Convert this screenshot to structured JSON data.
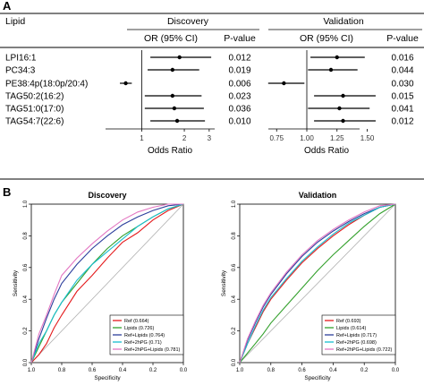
{
  "panel_labels": {
    "a": "A",
    "b": "B"
  },
  "forest": {
    "header": {
      "lipid": "Lipid",
      "discovery": "Discovery",
      "validation": "Validation",
      "or_ci": "OR (95% CI)",
      "pvalue": "P-value"
    },
    "x_label": "Odds Ratio",
    "lipids": [
      "LPI16:1",
      "PC34:3",
      "PE38:4p(18:0p/20:4)",
      "TAG50:2(16:2)",
      "TAG51:0(17:0)",
      "TAG54:7(22:6)"
    ],
    "discovery_pvalues": [
      "0.012",
      "0.019",
      "0.006",
      "0.023",
      "0.036",
      "0.010"
    ],
    "validation_pvalues": [
      "0.016",
      "0.044",
      "0.030",
      "0.015",
      "0.041",
      "0.012"
    ]
  },
  "roc_legend_labels": {
    "discovery": [
      "Ref (0.664)",
      "Lipids (0.726)",
      "Ref+Lipids (0.764)",
      "Ref+2hPG (0.71)",
      "Ref+2hPG+Lipids (0.781)"
    ],
    "validation": [
      "Ref (0.693)",
      "Lipids (0.614)",
      "Ref+Lipids (0.717)",
      "Ref+2hPG (0.698)",
      "Ref+2hPG+Lipids (0.722)"
    ]
  },
  "chart_data": [
    {
      "type": "scatter",
      "title": "Discovery",
      "xlabel": "Odds Ratio",
      "xscale": "log",
      "xlim": [
        0.6,
        3.2
      ],
      "xticks": [
        "1",
        "2",
        "3"
      ],
      "reference_line": 1,
      "categories": [
        "LPI16:1",
        "PC34:3",
        "PE38:4p(18:0p/20:4)",
        "TAG50:2(16:2)",
        "TAG51:0(17:0)",
        "TAG54:7(22:6)"
      ],
      "or": [
        1.85,
        1.65,
        0.77,
        1.65,
        1.7,
        1.78
      ],
      "ci_low": [
        1.15,
        1.1,
        0.7,
        1.05,
        1.05,
        1.15
      ],
      "ci_high": [
        3.1,
        2.55,
        0.85,
        2.65,
        2.75,
        2.8
      ],
      "pvalues": [
        "0.012",
        "0.019",
        "0.006",
        "0.023",
        "0.036",
        "0.010"
      ]
    },
    {
      "type": "scatter",
      "title": "Validation",
      "xlabel": "Odds Ratio",
      "xlim": [
        0.66,
        1.64
      ],
      "xticks": [
        "0.75",
        "1.00",
        "1.25",
        "1.50"
      ],
      "reference_line": 1,
      "categories": [
        "LPI16:1",
        "PC34:3",
        "PE38:4p(18:0p/20:4)",
        "TAG50:2(16:2)",
        "TAG51:0(17:0)",
        "TAG54:7(22:6)"
      ],
      "or": [
        1.25,
        1.2,
        0.81,
        1.3,
        1.27,
        1.3
      ],
      "ci_low": [
        1.03,
        1.01,
        0.68,
        1.06,
        1.01,
        1.06
      ],
      "ci_high": [
        1.48,
        1.42,
        0.98,
        1.57,
        1.52,
        1.57
      ],
      "pvalues": [
        "0.016",
        "0.044",
        "0.030",
        "0.015",
        "0.041",
        "0.012"
      ]
    },
    {
      "type": "line",
      "title": "Discovery",
      "xlabel": "Specificity",
      "ylabel": "Sensitivity",
      "x_reversed": true,
      "xlim": [
        1.0,
        0.0
      ],
      "ylim": [
        0.0,
        1.0
      ],
      "xticks": [
        "1.0",
        "0.8",
        "0.6",
        "0.4",
        "0.2",
        "0.0"
      ],
      "yticks": [
        "0.0",
        "0.2",
        "0.4",
        "0.6",
        "0.8",
        "1.0"
      ],
      "diagonal": true,
      "legend_position": "bottom-right",
      "series": [
        {
          "name": "Ref (0.664)",
          "color": "#e41a1c",
          "x": [
            1.0,
            0.95,
            0.9,
            0.85,
            0.8,
            0.7,
            0.6,
            0.5,
            0.4,
            0.3,
            0.2,
            0.1,
            0.0
          ],
          "y": [
            0.0,
            0.05,
            0.12,
            0.22,
            0.3,
            0.45,
            0.55,
            0.66,
            0.76,
            0.82,
            0.9,
            0.96,
            1.0
          ]
        },
        {
          "name": "Lipids (0.726)",
          "color": "#33a02c",
          "x": [
            1.0,
            0.95,
            0.9,
            0.85,
            0.8,
            0.7,
            0.6,
            0.5,
            0.4,
            0.3,
            0.2,
            0.1,
            0.0
          ],
          "y": [
            0.0,
            0.1,
            0.2,
            0.3,
            0.38,
            0.5,
            0.62,
            0.72,
            0.8,
            0.86,
            0.92,
            0.97,
            1.0
          ]
        },
        {
          "name": "Ref+Lipids (0.764)",
          "color": "#2c3e9c",
          "x": [
            1.0,
            0.95,
            0.9,
            0.85,
            0.8,
            0.7,
            0.6,
            0.5,
            0.4,
            0.3,
            0.2,
            0.1,
            0.0
          ],
          "y": [
            0.0,
            0.15,
            0.28,
            0.4,
            0.5,
            0.62,
            0.72,
            0.8,
            0.87,
            0.92,
            0.96,
            0.99,
            1.0
          ]
        },
        {
          "name": "Ref+2hPG (0.71)",
          "color": "#17becf",
          "x": [
            1.0,
            0.95,
            0.9,
            0.85,
            0.8,
            0.7,
            0.6,
            0.5,
            0.4,
            0.3,
            0.2,
            0.1,
            0.0
          ],
          "y": [
            0.0,
            0.12,
            0.2,
            0.3,
            0.38,
            0.52,
            0.62,
            0.7,
            0.78,
            0.86,
            0.92,
            0.97,
            1.0
          ]
        },
        {
          "name": "Ref+2hPG+Lipids (0.781)",
          "color": "#e377c2",
          "x": [
            1.0,
            0.95,
            0.9,
            0.85,
            0.8,
            0.7,
            0.6,
            0.5,
            0.4,
            0.3,
            0.2,
            0.1,
            0.0
          ],
          "y": [
            0.0,
            0.18,
            0.3,
            0.43,
            0.55,
            0.66,
            0.75,
            0.83,
            0.9,
            0.95,
            0.98,
            1.0,
            1.0
          ]
        }
      ]
    },
    {
      "type": "line",
      "title": "Validation",
      "xlabel": "Specificity",
      "ylabel": "Sensitivity",
      "x_reversed": true,
      "xlim": [
        1.0,
        0.0
      ],
      "ylim": [
        0.0,
        1.0
      ],
      "xticks": [
        "1.0",
        "0.8",
        "0.6",
        "0.4",
        "0.2",
        "0.0"
      ],
      "yticks": [
        "0.0",
        "0.2",
        "0.4",
        "0.6",
        "0.8",
        "1.0"
      ],
      "diagonal": true,
      "legend_position": "bottom-right",
      "series": [
        {
          "name": "Ref (0.693)",
          "color": "#e41a1c",
          "x": [
            1.0,
            0.95,
            0.9,
            0.85,
            0.8,
            0.7,
            0.6,
            0.5,
            0.4,
            0.3,
            0.2,
            0.1,
            0.0
          ],
          "y": [
            0.0,
            0.12,
            0.22,
            0.32,
            0.4,
            0.52,
            0.63,
            0.72,
            0.8,
            0.87,
            0.93,
            0.98,
            1.0
          ]
        },
        {
          "name": "Lipids (0.614)",
          "color": "#33a02c",
          "x": [
            1.0,
            0.95,
            0.9,
            0.85,
            0.8,
            0.7,
            0.6,
            0.5,
            0.4,
            0.3,
            0.2,
            0.1,
            0.0
          ],
          "y": [
            0.0,
            0.06,
            0.12,
            0.18,
            0.25,
            0.36,
            0.47,
            0.58,
            0.68,
            0.77,
            0.86,
            0.94,
            1.0
          ]
        },
        {
          "name": "Ref+Lipids (0.717)",
          "color": "#2c3e9c",
          "x": [
            1.0,
            0.95,
            0.9,
            0.85,
            0.8,
            0.7,
            0.6,
            0.5,
            0.4,
            0.3,
            0.2,
            0.1,
            0.0
          ],
          "y": [
            0.0,
            0.14,
            0.25,
            0.35,
            0.43,
            0.56,
            0.67,
            0.76,
            0.83,
            0.89,
            0.94,
            0.98,
            1.0
          ]
        },
        {
          "name": "Ref+2hPG (0.698)",
          "color": "#17becf",
          "x": [
            1.0,
            0.95,
            0.9,
            0.85,
            0.8,
            0.7,
            0.6,
            0.5,
            0.4,
            0.3,
            0.2,
            0.1,
            0.0
          ],
          "y": [
            0.0,
            0.12,
            0.23,
            0.33,
            0.41,
            0.53,
            0.64,
            0.73,
            0.81,
            0.88,
            0.93,
            0.98,
            1.0
          ]
        },
        {
          "name": "Ref+2hPG+Lipids (0.722)",
          "color": "#e377c2",
          "x": [
            1.0,
            0.95,
            0.9,
            0.85,
            0.8,
            0.7,
            0.6,
            0.5,
            0.4,
            0.3,
            0.2,
            0.1,
            0.0
          ],
          "y": [
            0.0,
            0.15,
            0.26,
            0.36,
            0.44,
            0.57,
            0.68,
            0.77,
            0.84,
            0.9,
            0.95,
            0.99,
            1.0
          ]
        }
      ]
    }
  ]
}
